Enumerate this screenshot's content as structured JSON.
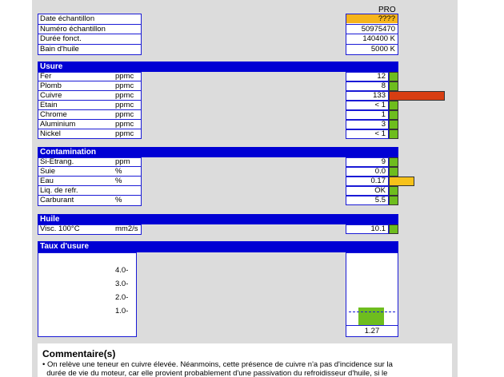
{
  "header": {
    "column_title": "PRO"
  },
  "sample": [
    {
      "label": "Date échantillon",
      "value": "????",
      "highlight": "#f6b41a"
    },
    {
      "label": "Numéro échantillon",
      "value": "50975470"
    },
    {
      "label": "Durée fonct.",
      "value": "140400 K"
    },
    {
      "label": "Bain d'huile",
      "value": "5000 K"
    }
  ],
  "usure": {
    "title": "Usure",
    "rows": [
      {
        "label": "Fer",
        "unit": "ppmc",
        "value": "12",
        "status": "green",
        "bar_level": 0
      },
      {
        "label": "Plomb",
        "unit": "ppmc",
        "value": "8",
        "status": "green",
        "bar_level": 0
      },
      {
        "label": "Cuivre",
        "unit": "ppmc",
        "value": "133",
        "status": "red",
        "bar_level": 1.0
      },
      {
        "label": "Etain",
        "unit": "ppmc",
        "value": "< 1",
        "status": "green",
        "bar_level": 0
      },
      {
        "label": "Chrome",
        "unit": "ppmc",
        "value": "1",
        "status": "green",
        "bar_level": 0
      },
      {
        "label": "Aluminium",
        "unit": "ppmc",
        "value": "3",
        "status": "green",
        "bar_level": 0
      },
      {
        "label": "Nickel",
        "unit": "ppmc",
        "value": "< 1",
        "status": "green",
        "bar_level": 0
      }
    ]
  },
  "contamination": {
    "title": "Contamination",
    "rows": [
      {
        "label": "Si-Etrang.",
        "unit": "ppm",
        "value": "9",
        "status": "green",
        "bar_level": 0
      },
      {
        "label": "Suie",
        "unit": "%",
        "value": "0.0",
        "status": "green",
        "bar_level": 0
      },
      {
        "label": "Eau",
        "unit": "%",
        "value": "0.17",
        "status": "orange",
        "bar_level": 0.45
      },
      {
        "label": "Liq. de refr.",
        "unit": "",
        "value": "OK",
        "status": "green",
        "bar_level": 0
      },
      {
        "label": "Carburant",
        "unit": "%",
        "value": "5.5",
        "status": "green",
        "bar_level": 0
      }
    ]
  },
  "huile": {
    "title": "Huile",
    "rows": [
      {
        "label": "Visc. 100°C",
        "unit": "mm2/s",
        "value": "10.1",
        "status": "green",
        "bar_level": 0
      }
    ]
  },
  "taux": {
    "title": "Taux d'usure",
    "ticks": [
      "4.0-",
      "3.0-",
      "2.0-",
      "1.0-"
    ],
    "value": "1.27"
  },
  "chart_data": {
    "type": "bar",
    "categories": [
      "PRO"
    ],
    "values": [
      1.27
    ],
    "title": "Taux d'usure",
    "ylim": [
      0,
      5
    ],
    "yticks": [
      1.0,
      2.0,
      3.0,
      4.0
    ],
    "reference_line": 1.0,
    "color": "#6ebd1e"
  },
  "comment": {
    "title": "Commentaire(s)",
    "lines": [
      "• On relève une teneur en cuivre élevée. Néanmoins, cette présence de cuivre n'a pas d'incidence sur la",
      "  durée de vie du moteur, car elle provient probablement d'une passivation du refroidisseur d'huile, si le"
    ]
  },
  "colors": {
    "header_blue": "#0000d4",
    "ok": "#6ebd1e",
    "warn": "#f6c21a",
    "alert": "#d73e12"
  }
}
